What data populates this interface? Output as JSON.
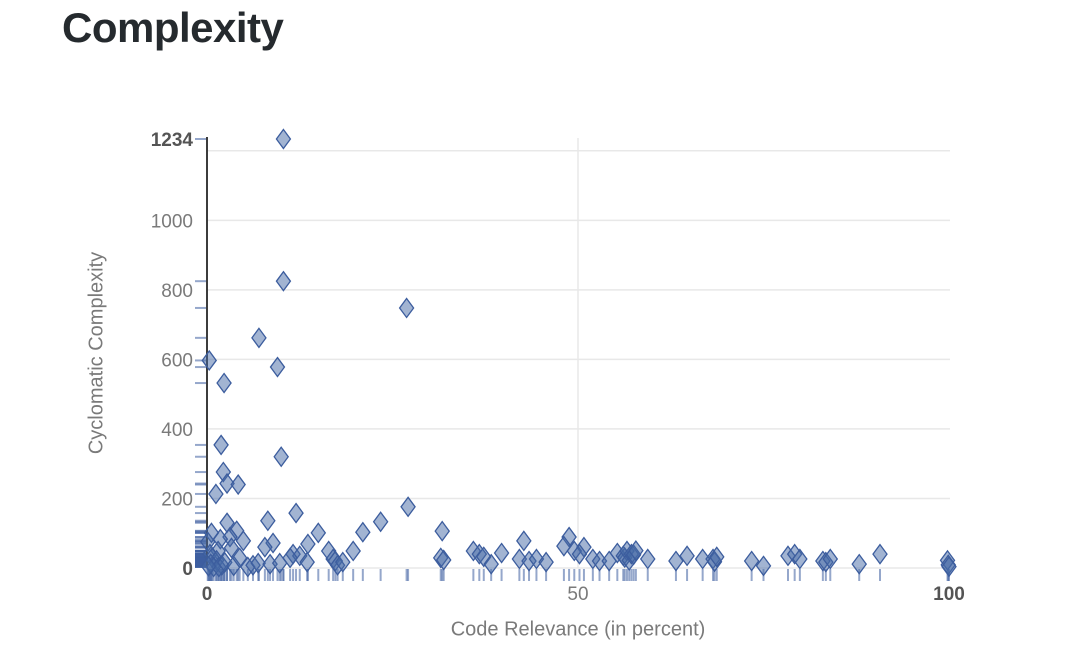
{
  "chart_data": {
    "type": "scatter",
    "title": "Complexity",
    "xlabel": "Code Relevance (in percent)",
    "ylabel": "Cyclomatic Complexity",
    "xlim": [
      0,
      100
    ],
    "ylim": [
      0,
      1234
    ],
    "legend": "none",
    "grid": {
      "y_values": [
        0,
        200,
        400,
        600,
        800,
        1000,
        1200
      ],
      "x_values": [
        50
      ]
    },
    "x_ticks": [
      {
        "value": 0,
        "label": "0",
        "emphasized": true
      },
      {
        "value": 50,
        "label": "50",
        "emphasized": false
      },
      {
        "value": 100,
        "label": "100",
        "emphasized": true
      }
    ],
    "y_ticks": [
      {
        "value": 0,
        "label": "0",
        "emphasized": true
      },
      {
        "value": 200,
        "label": "200",
        "emphasized": false
      },
      {
        "value": 400,
        "label": "400",
        "emphasized": false
      },
      {
        "value": 600,
        "label": "600",
        "emphasized": false
      },
      {
        "value": 800,
        "label": "800",
        "emphasized": false
      },
      {
        "value": 1000,
        "label": "1000",
        "emphasized": false
      },
      {
        "value": 1234,
        "label": "1234",
        "emphasized": true
      }
    ],
    "marker": "diamond-tall",
    "rug_x": true,
    "rug_y": true,
    "colors": {
      "marker_fill": "rgba(70,106,166,0.5)",
      "marker_stroke": "#3c5d9e",
      "rug": "rgba(62,95,160,0.55)",
      "grid": "#e8e8e8",
      "axis_line": "#3c3c3c",
      "tick_label": "#7a7a7a",
      "tick_label_emphasized": "#545454",
      "title": "#252a2e",
      "axis_title": "#7a7a7a"
    },
    "points": [
      [
        10.3,
        1234
      ],
      [
        10.3,
        825
      ],
      [
        26.9,
        748
      ],
      [
        7.0,
        662
      ],
      [
        0.3,
        597
      ],
      [
        9.5,
        578
      ],
      [
        2.3,
        532
      ],
      [
        1.9,
        354
      ],
      [
        10.0,
        320
      ],
      [
        2.2,
        276
      ],
      [
        2.7,
        243
      ],
      [
        4.2,
        240
      ],
      [
        1.2,
        213
      ],
      [
        27.1,
        176
      ],
      [
        12.0,
        158
      ],
      [
        8.2,
        136
      ],
      [
        23.4,
        133
      ],
      [
        2.7,
        130
      ],
      [
        31.7,
        106
      ],
      [
        21.0,
        103
      ],
      [
        15.0,
        101
      ],
      [
        4.0,
        107
      ],
      [
        0.6,
        101
      ],
      [
        3.1,
        89
      ],
      [
        1.8,
        83
      ],
      [
        4.9,
        78
      ],
      [
        0.1,
        75
      ],
      [
        8.9,
        72
      ],
      [
        13.6,
        69
      ],
      [
        7.8,
        60
      ],
      [
        3.3,
        58
      ],
      [
        42.7,
        78
      ],
      [
        48.8,
        89
      ],
      [
        48.1,
        63
      ],
      [
        50.8,
        60
      ],
      [
        1.5,
        49
      ],
      [
        0.4,
        40
      ],
      [
        0.7,
        30
      ],
      [
        1.3,
        22
      ],
      [
        0.5,
        12
      ],
      [
        2.0,
        8
      ],
      [
        0.9,
        3
      ],
      [
        1.6,
        3
      ],
      [
        0.2,
        5
      ],
      [
        2.4,
        16
      ],
      [
        3.6,
        6
      ],
      [
        4.4,
        29
      ],
      [
        5.5,
        3
      ],
      [
        6.2,
        8
      ],
      [
        6.9,
        14
      ],
      [
        8.5,
        11
      ],
      [
        9.8,
        14
      ],
      [
        11.6,
        40
      ],
      [
        12.5,
        35
      ],
      [
        11.2,
        29
      ],
      [
        13.5,
        17
      ],
      [
        16.4,
        49
      ],
      [
        17.0,
        26
      ],
      [
        17.3,
        20
      ],
      [
        17.6,
        8
      ],
      [
        18.3,
        17
      ],
      [
        19.7,
        49
      ],
      [
        31.5,
        29
      ],
      [
        31.9,
        23
      ],
      [
        35.9,
        49
      ],
      [
        36.7,
        40
      ],
      [
        37.3,
        32
      ],
      [
        38.3,
        11
      ],
      [
        39.7,
        43
      ],
      [
        42.1,
        26
      ],
      [
        43.4,
        20
      ],
      [
        44.4,
        26
      ],
      [
        45.7,
        17
      ],
      [
        49.5,
        49
      ],
      [
        50.2,
        40
      ],
      [
        52.0,
        26
      ],
      [
        52.9,
        20
      ],
      [
        54.2,
        20
      ],
      [
        55.3,
        43
      ],
      [
        56.1,
        35
      ],
      [
        56.3,
        30
      ],
      [
        56.6,
        49
      ],
      [
        56.9,
        22
      ],
      [
        57.2,
        40
      ],
      [
        57.5,
        38
      ],
      [
        57.8,
        50
      ],
      [
        59.4,
        26
      ],
      [
        63.2,
        20
      ],
      [
        64.7,
        35
      ],
      [
        66.8,
        26
      ],
      [
        68.2,
        26
      ],
      [
        68.4,
        18
      ],
      [
        68.7,
        32
      ],
      [
        73.4,
        20
      ],
      [
        75.0,
        6
      ],
      [
        78.3,
        35
      ],
      [
        79.2,
        40
      ],
      [
        79.9,
        26
      ],
      [
        83.0,
        20
      ],
      [
        83.4,
        17
      ],
      [
        84.0,
        26
      ],
      [
        87.9,
        11
      ],
      [
        90.7,
        40
      ],
      [
        99.8,
        22
      ],
      [
        99.9,
        9
      ],
      [
        100,
        4
      ]
    ]
  }
}
